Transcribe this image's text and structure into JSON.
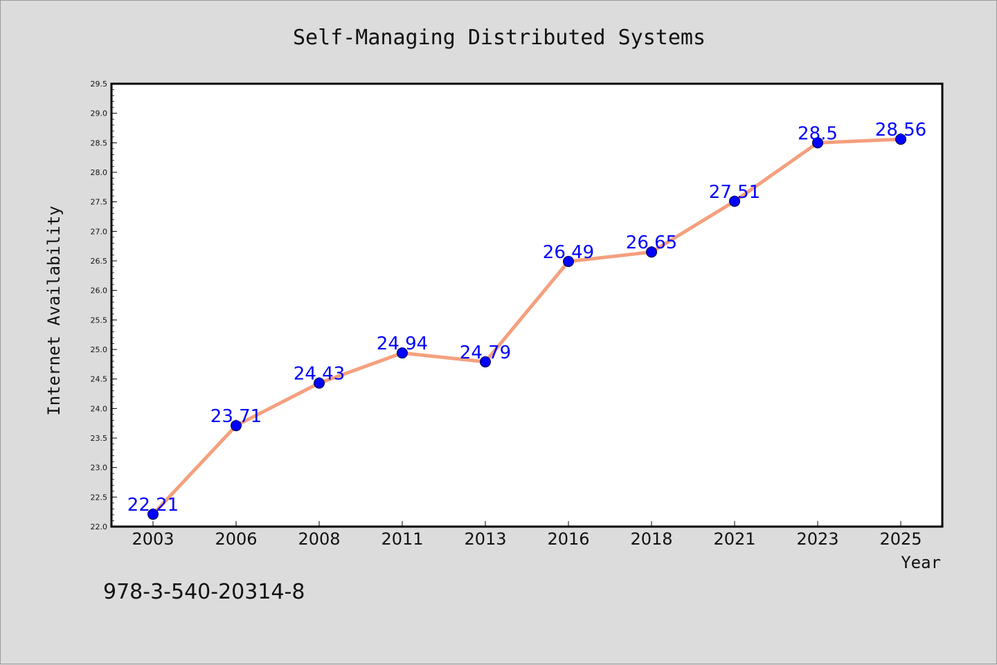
{
  "colors": {
    "background": "#dcdcdc",
    "plot_background": "#ffffff",
    "line": "#f4a07e",
    "marker": "#0000ff",
    "data_label": "#0000ff"
  },
  "footer_code": "978-3-540-20314-8",
  "chart_data": {
    "type": "line",
    "title": "Self-Managing Distributed Systems",
    "xlabel": "Year",
    "ylabel": "Internet Availability",
    "categories": [
      "2003",
      "2006",
      "2008",
      "2011",
      "2013",
      "2016",
      "2018",
      "2021",
      "2023",
      "2025"
    ],
    "series": [
      {
        "values": [
          22.21,
          23.71,
          24.43,
          24.94,
          24.79,
          26.49,
          26.65,
          27.51,
          28.5,
          28.56
        ],
        "labels": [
          "22.21",
          "23.71",
          "24.43",
          "24.94",
          "24.79",
          "26.49",
          "26.65",
          "27.51",
          "28.5",
          "28.56"
        ]
      }
    ],
    "ylim": [
      22.0,
      29.5
    ],
    "yticks": [
      "22.0",
      "22.5",
      "23.0",
      "23.5",
      "24.0",
      "24.5",
      "25.0",
      "25.5",
      "26.0",
      "26.5",
      "27.0",
      "27.5",
      "28.0",
      "28.5",
      "29.0",
      "29.5"
    ],
    "grid": false,
    "legend": "none"
  }
}
